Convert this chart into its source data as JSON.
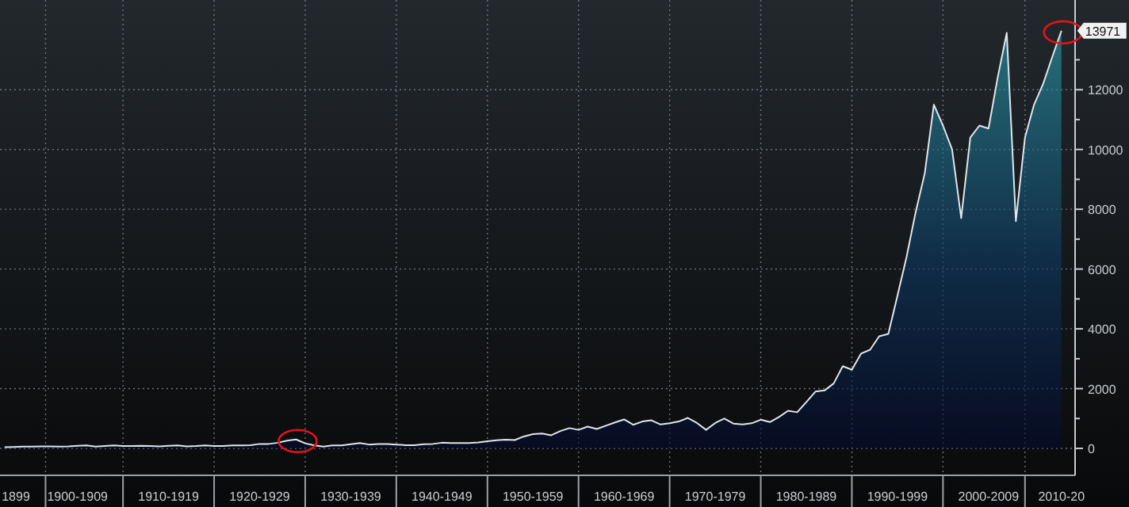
{
  "chart_data": {
    "type": "area",
    "categories": [
      null,
      "1899",
      null,
      null,
      null,
      null,
      null,
      null,
      "1900-1909",
      null,
      null,
      null,
      null,
      null,
      null,
      null,
      null,
      null,
      "1910-1919",
      null,
      null,
      null,
      null,
      null,
      null,
      null,
      null,
      null,
      "1920-1929",
      null,
      null,
      null,
      null,
      null,
      null,
      null,
      null,
      null,
      "1930-1939",
      null,
      null,
      null,
      null,
      null,
      null,
      null,
      null,
      null,
      "1940-1949",
      null,
      null,
      null,
      null,
      null,
      null,
      null,
      null,
      null,
      "1950-1959",
      null,
      null,
      null,
      null,
      null,
      null,
      null,
      null,
      null,
      "1960-1969",
      null,
      null,
      null,
      null,
      null,
      null,
      null,
      null,
      null,
      "1970-1979",
      null,
      null,
      null,
      null,
      null,
      null,
      null,
      null,
      null,
      "1980-1989",
      null,
      null,
      null,
      null,
      null,
      null,
      null,
      null,
      null,
      "1990-1999",
      null,
      null,
      null,
      null,
      null,
      null,
      null,
      null,
      null,
      "2000-2009",
      null,
      null,
      null,
      null,
      null,
      null,
      null,
      "2010-20"
    ],
    "series": [
      {
        "color": "#dfe6ea",
        "values": [
          40,
          50,
          60,
          60,
          70,
          70,
          60,
          70,
          90,
          100,
          60,
          80,
          100,
          80,
          80,
          90,
          80,
          70,
          90,
          100,
          70,
          80,
          100,
          80,
          80,
          100,
          100,
          110,
          150,
          150,
          190,
          260,
          300,
          170,
          100,
          60,
          100,
          100,
          140,
          180,
          130,
          150,
          150,
          130,
          110,
          110,
          140,
          150,
          190,
          180,
          180,
          180,
          200,
          240,
          270,
          290,
          280,
          400,
          480,
          500,
          440,
          580,
          680,
          620,
          730,
          650,
          760,
          870,
          970,
          790,
          900,
          940,
          800,
          840,
          900,
          1020,
          850,
          620,
          850,
          1000,
          830,
          800,
          840,
          960,
          880,
          1050,
          1260,
          1210,
          1550,
          1900,
          1940,
          2170,
          2750,
          2630,
          3170,
          3300,
          3750,
          3830,
          5100,
          6400,
          7900,
          9200,
          11500,
          10800,
          10000,
          7700,
          10400,
          10800,
          10700,
          12400,
          13900,
          7600,
          10400,
          11500,
          12200,
          13100,
          13971
        ]
      }
    ],
    "ylim": [
      -900,
      15000
    ],
    "yticks": [
      0,
      {
        "value": 1000,
        "label": null
      },
      2000,
      {
        "value": 3000,
        "label": null
      },
      4000,
      {
        "value": 5000,
        "label": null
      },
      6000,
      {
        "value": 7000,
        "label": null
      },
      8000,
      {
        "value": 9000,
        "label": null
      },
      10000,
      {
        "value": 11000,
        "label": null
      },
      12000,
      {
        "value": 13000,
        "label": null
      }
    ],
    "grid": true,
    "annotations": [
      {
        "text": "13971",
        "x": "2010-20",
        "y": 13971
      }
    ]
  }
}
